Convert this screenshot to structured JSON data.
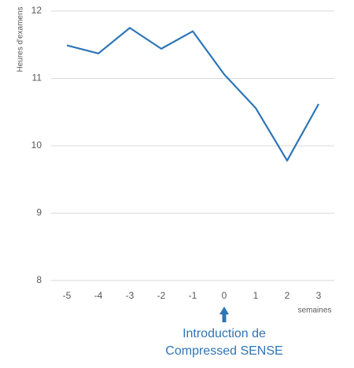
{
  "chart_data": {
    "type": "line",
    "y_label": "Heures d'examens",
    "x_label": "semaines",
    "annotation": [
      "Introduction de",
      "Compressed SENSE"
    ],
    "annotation_x": 0,
    "x": [
      -5,
      -4,
      -3,
      -2,
      -1,
      0,
      1,
      2,
      3
    ],
    "series": [
      {
        "color": "#2e75b6",
        "values": [
          11.49,
          11.37,
          11.75,
          11.44,
          11.7,
          11.06,
          10.56,
          9.78,
          10.62
        ]
      }
    ],
    "xlim": [
      -5.5,
      3.5
    ],
    "xticks": [
      -5,
      -4,
      -3,
      -2,
      -1,
      0,
      1,
      2,
      3
    ],
    "ylim": [
      8,
      12
    ],
    "yticks": [
      8,
      9,
      10,
      11,
      12
    ],
    "grid": true
  }
}
